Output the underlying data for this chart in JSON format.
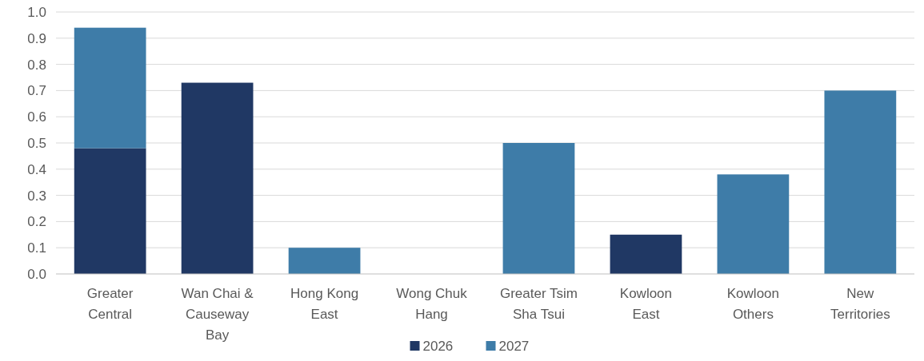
{
  "chart_data": {
    "type": "bar",
    "stacked": true,
    "categories": [
      "Greater Central",
      "Wan Chai & Causeway Bay",
      "Hong Kong East",
      "Wong Chuk Hang",
      "Greater Tsim Sha Tsui",
      "Kowloon East",
      "Kowloon Others",
      "New Territories"
    ],
    "series": [
      {
        "name": "2026",
        "color": "#203864",
        "values": [
          0.48,
          0.73,
          0,
          0,
          0,
          0.15,
          0,
          0
        ]
      },
      {
        "name": "2027",
        "color": "#3e7ca8",
        "values": [
          0.46,
          0,
          0.1,
          0,
          0.5,
          0,
          0.38,
          0.7
        ]
      }
    ],
    "ylim": [
      0,
      1.0
    ],
    "yticks": [
      {
        "value": 0,
        "label": "0.0"
      },
      0.1,
      0.2,
      0.3,
      0.4,
      0.5,
      0.6,
      0.7,
      0.8,
      0.9,
      {
        "value": 1,
        "label": "1.0"
      }
    ],
    "grid": "y",
    "legend": "bottom"
  }
}
